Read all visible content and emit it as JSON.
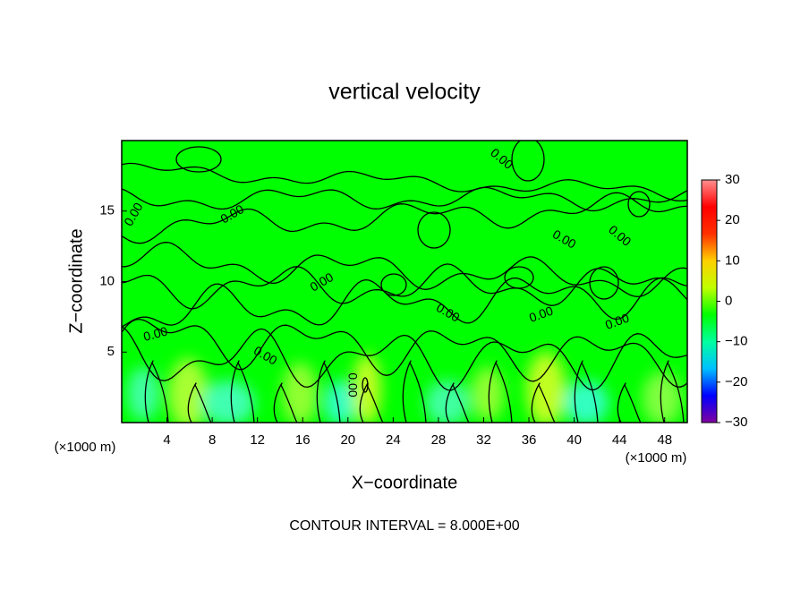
{
  "chart_data": {
    "type": "contour",
    "title": "vertical velocity",
    "x_label": "X−coordinate",
    "y_label": "Z−coordinate",
    "x_unit": "(×1000 m)",
    "y_unit": "(×1000 m)",
    "footer": "CONTOUR INTERVAL = 8.000E+00",
    "xlim": [
      0,
      50
    ],
    "xticks": [
      4,
      8,
      12,
      16,
      20,
      24,
      28,
      32,
      36,
      40,
      44,
      48
    ],
    "ylim": [
      0,
      20
    ],
    "yticks": [
      5,
      10,
      15
    ],
    "levels": [
      {
        "value": 0,
        "label": "0.00"
      }
    ],
    "colorbar": {
      "lim": [
        -30,
        30
      ],
      "ticks": [
        30,
        20,
        10,
        0,
        {
          "value": -10,
          "label": "−10"
        },
        {
          "value": -20,
          "label": "−20"
        },
        {
          "value": -30,
          "label": "−30"
        }
      ],
      "colormap": [
        "#8000a0",
        "#0000ff",
        "#00c0ff",
        "#00ffa0",
        "#00ff00",
        "#c0ff00",
        "#ffd000",
        "#ff3000",
        "#ff0000",
        "#ff9090"
      ]
    }
  }
}
